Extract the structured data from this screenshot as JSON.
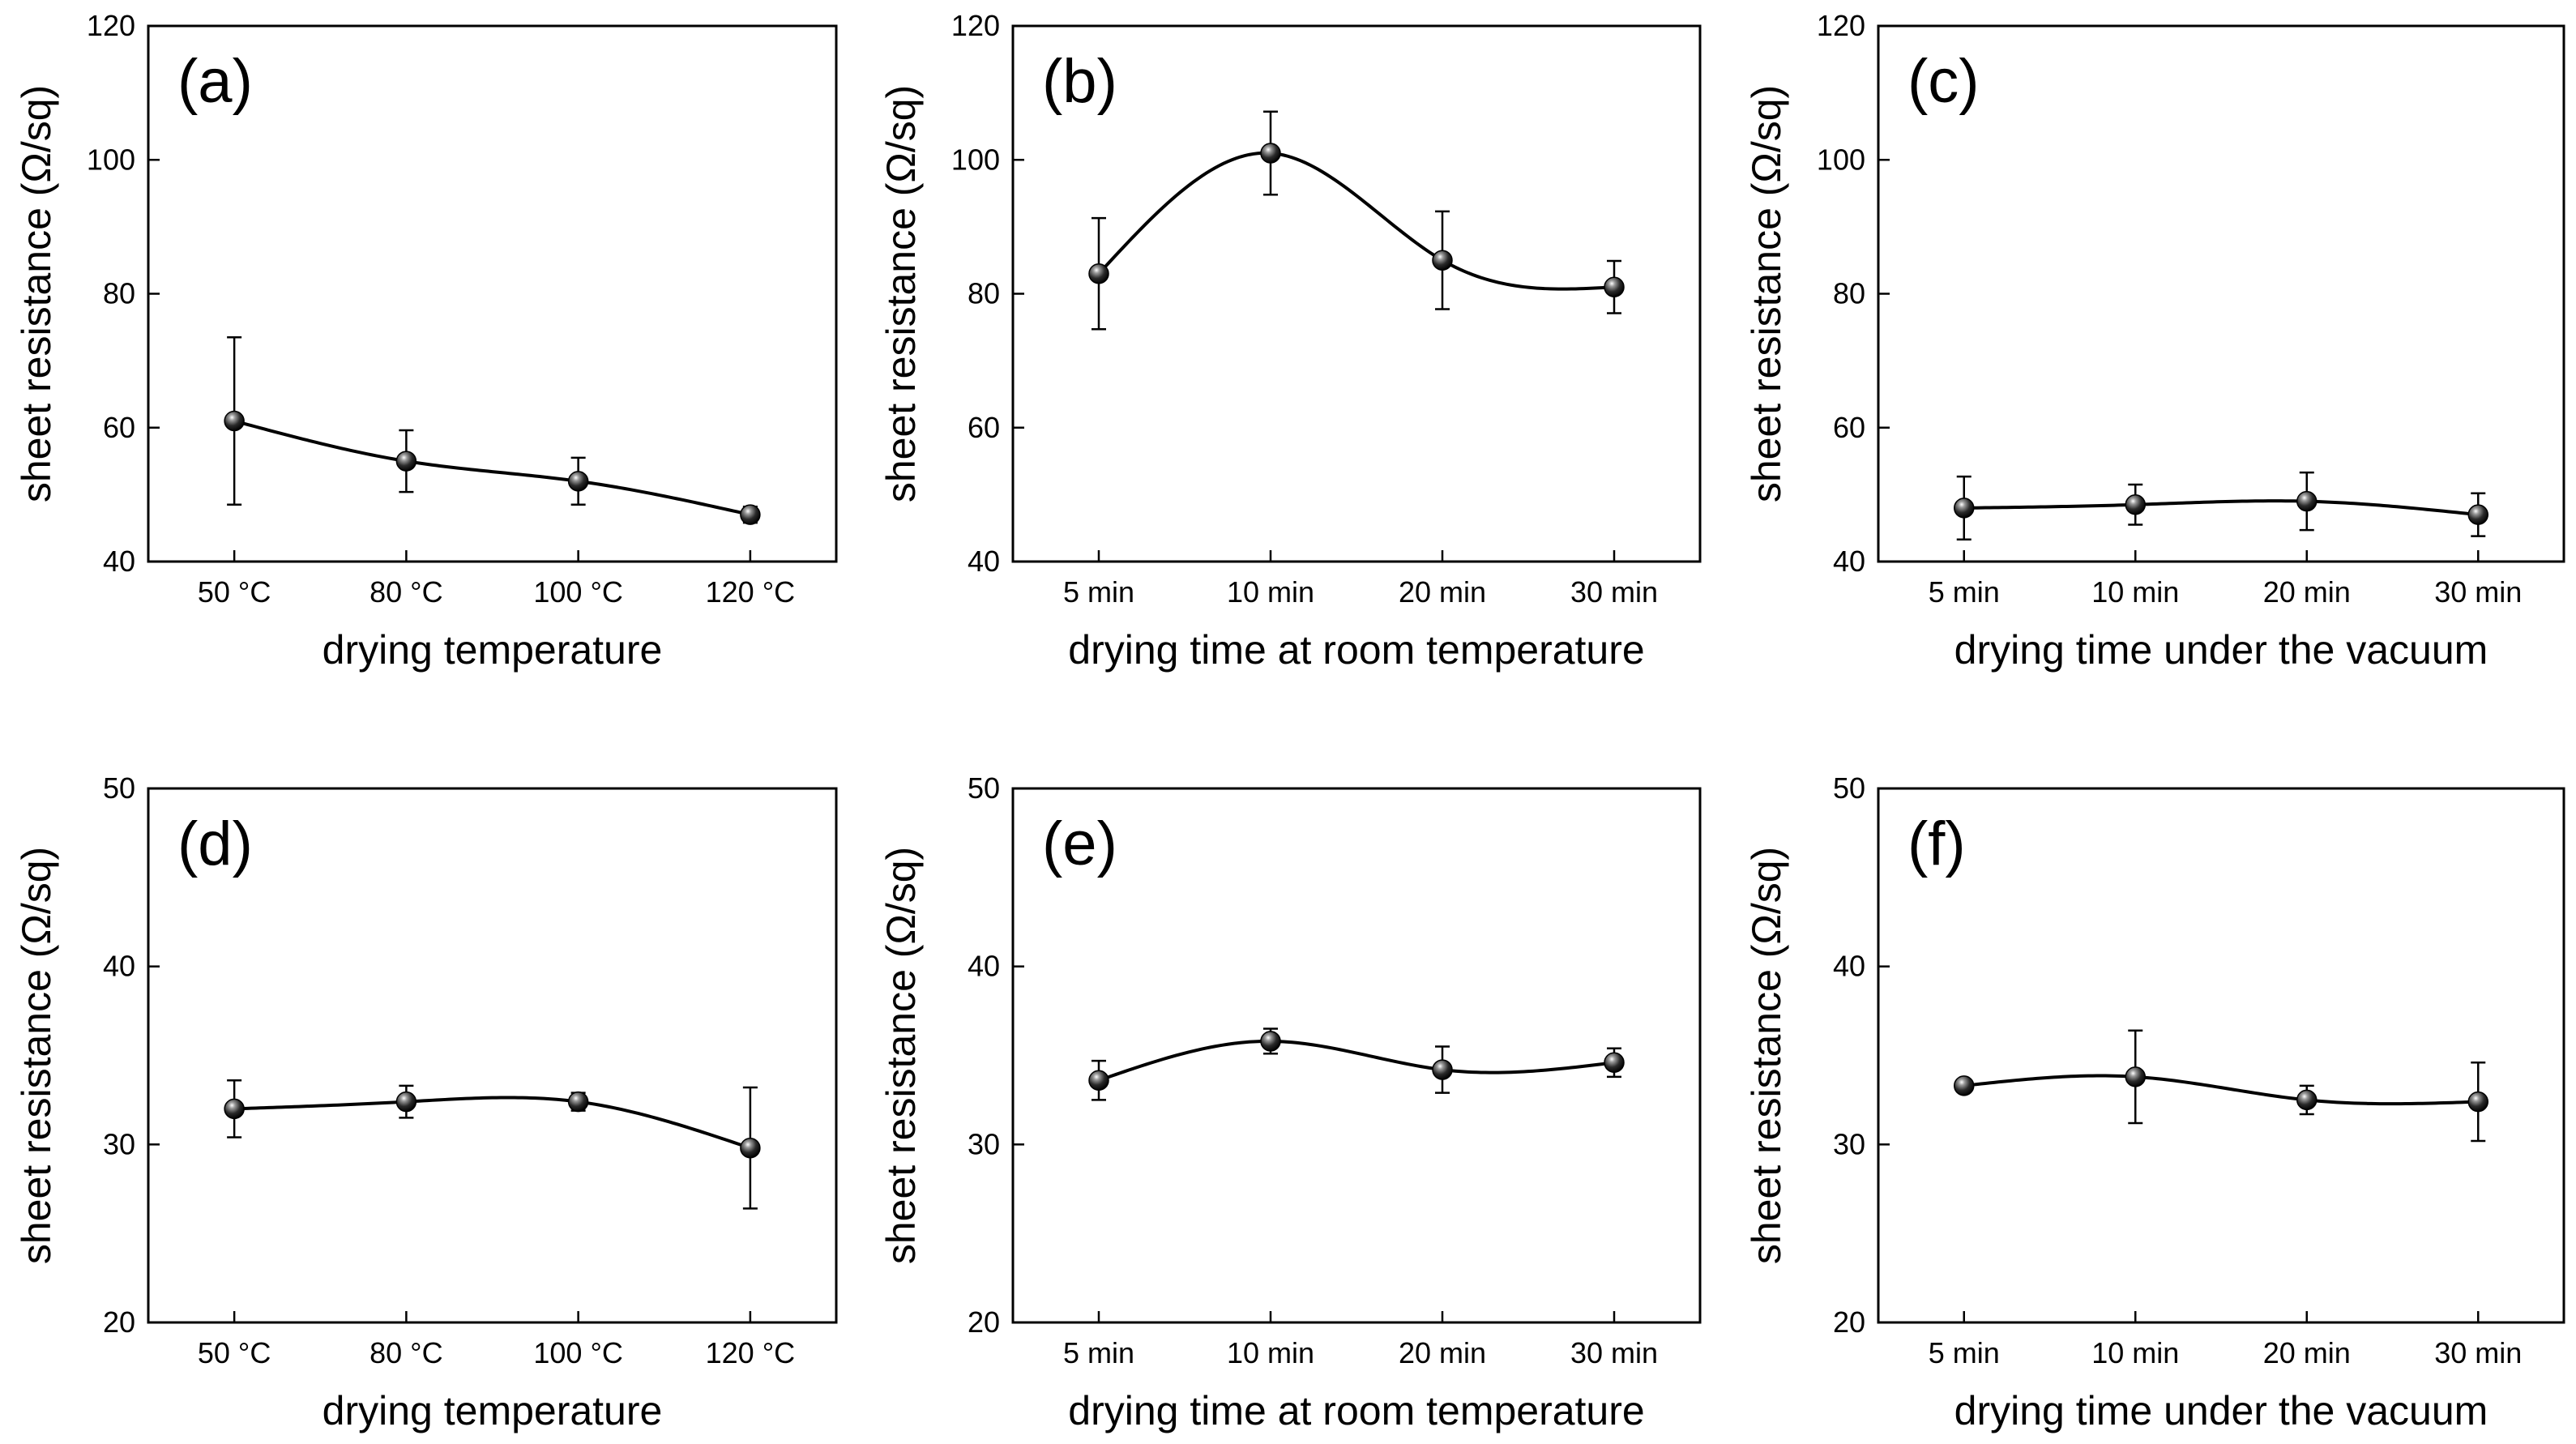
{
  "chart_data": [
    {
      "type": "line",
      "panel_label": "(a)",
      "categories": [
        "50 °C",
        "80 °C",
        "100 °C",
        "120 °C"
      ],
      "values": [
        61,
        55,
        52,
        47
      ],
      "errors": [
        12.5,
        4.6,
        3.5,
        1.2
      ],
      "xlabel": "drying temperature",
      "ylabel": "sheet resistance (Ω/sq)",
      "ylim": [
        40,
        120
      ],
      "yticks": [
        40,
        60,
        80,
        100,
        120
      ],
      "ytick_labels": [
        "40",
        "60",
        "80",
        "100",
        "120"
      ]
    },
    {
      "type": "line",
      "panel_label": "(b)",
      "categories": [
        "5 min",
        "10 min",
        "20 min",
        "30 min"
      ],
      "values": [
        83,
        101,
        85,
        81
      ],
      "errors": [
        8.3,
        6.2,
        7.3,
        3.9
      ],
      "xlabel": "drying time at room temperature",
      "ylabel": "sheet resistance (Ω/sq)",
      "ylim": [
        40,
        120
      ],
      "yticks": [
        40,
        60,
        80,
        100,
        120
      ],
      "ytick_labels": [
        "40",
        "60",
        "80",
        "100",
        "120"
      ]
    },
    {
      "type": "line",
      "panel_label": "(c)",
      "categories": [
        "5 min",
        "10 min",
        "20 min",
        "30 min"
      ],
      "values": [
        48,
        48.5,
        49,
        47
      ],
      "errors": [
        4.7,
        3.0,
        4.3,
        3.2
      ],
      "xlabel": "drying time under the vacuum",
      "ylabel": "sheet resistance (Ω/sq)",
      "ylim": [
        40,
        120
      ],
      "yticks": [
        40,
        60,
        80,
        100,
        120
      ],
      "ytick_labels": [
        "40",
        "60",
        "80",
        "100",
        "120"
      ]
    },
    {
      "type": "line",
      "panel_label": "(d)",
      "categories": [
        "50 °C",
        "80 °C",
        "100 °C",
        "120 °C"
      ],
      "values": [
        32,
        32.4,
        32.4,
        29.8
      ],
      "errors": [
        1.6,
        0.9,
        0.5,
        3.4
      ],
      "xlabel": "drying temperature",
      "ylabel": "sheet resistance (Ω/sq)",
      "ylim": [
        20,
        50
      ],
      "yticks": [
        20,
        30,
        40,
        50
      ],
      "ytick_labels": [
        "20",
        "30",
        "40",
        "50"
      ]
    },
    {
      "type": "line",
      "panel_label": "(e)",
      "categories": [
        "5 min",
        "10 min",
        "20 min",
        "30 min"
      ],
      "values": [
        33.6,
        35.8,
        34.2,
        34.6
      ],
      "errors": [
        1.1,
        0.7,
        1.3,
        0.8
      ],
      "xlabel": "drying time at room temperature",
      "ylabel": "sheet resistance (Ω/sq)",
      "ylim": [
        20,
        50
      ],
      "yticks": [
        20,
        30,
        40,
        50
      ],
      "ytick_labels": [
        "20",
        "30",
        "40",
        "50"
      ]
    },
    {
      "type": "line",
      "panel_label": "(f)",
      "categories": [
        "5 min",
        "10 min",
        "20 min",
        "30 min"
      ],
      "values": [
        33.3,
        33.8,
        32.5,
        32.4
      ],
      "errors": [
        0.3,
        2.6,
        0.8,
        2.2
      ],
      "xlabel": "drying time under the vacuum",
      "ylabel": "sheet resistance (Ω/sq)",
      "ylim": [
        20,
        50
      ],
      "yticks": [
        20,
        30,
        40,
        50
      ],
      "ytick_labels": [
        "20",
        "30",
        "40",
        "50"
      ]
    }
  ]
}
